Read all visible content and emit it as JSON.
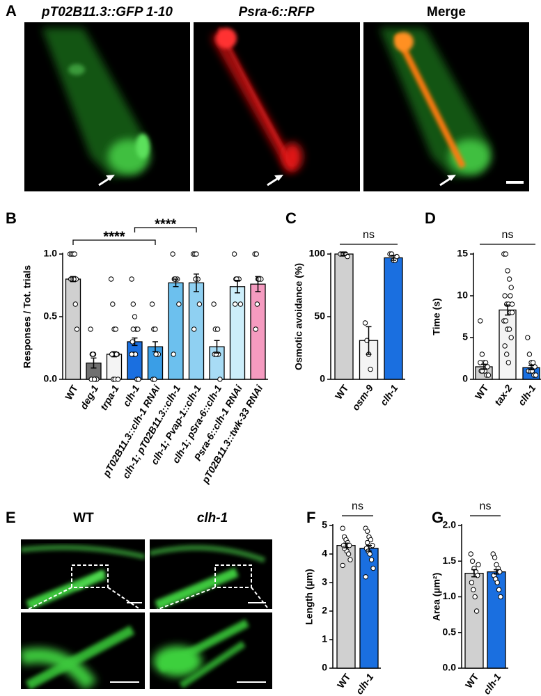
{
  "panel_labels": [
    "A",
    "B",
    "C",
    "D",
    "E",
    "F",
    "G"
  ],
  "panel_a": {
    "titles": [
      "pT02B11.3::GFP 1-10",
      "Psra-6::RFP",
      "Merge"
    ]
  },
  "panel_e": {
    "titles": [
      "WT",
      "clh-1"
    ]
  },
  "chart_data": [
    {
      "type": "bar",
      "ylabel": "Responses / Tot. trials",
      "categories": [
        "WT",
        "deg-1",
        "trpa-1",
        "clh-1",
        "pT02B11.3::clh-1 RNAi",
        "clh-1; pT02B11.3::clh-1",
        "clh-1; Pvap-1::clh-1",
        "clh-1; pSra-6::clh-1",
        "Psra-6::clh-1 RNAi",
        "pT02B11.3::twk-33 RNAi"
      ],
      "values": [
        0.8,
        0.13,
        0.2,
        0.3,
        0.26,
        0.77,
        0.77,
        0.26,
        0.74,
        0.76
      ],
      "errors": [
        0.02,
        0.04,
        0.02,
        0.03,
        0.04,
        0.03,
        0.07,
        0.05,
        0.05,
        0.06
      ],
      "colors": [
        "#d0d0d0",
        "#707070",
        "#f4f4f4",
        "#1a6fe0",
        "#3a9ee6",
        "#6cc0ee",
        "#8fd0f2",
        "#a8dcf5",
        "#cceefa",
        "#f59bc0"
      ],
      "points": [
        [
          1,
          1,
          1,
          1,
          0.8,
          0.8,
          0.8,
          0.8,
          0.6,
          0.4
        ],
        [
          0.4,
          0.2,
          0.2,
          0,
          0,
          0,
          0.2,
          0
        ],
        [
          0.8,
          0.6,
          0.4,
          0.4,
          0.2,
          0.2,
          0,
          0,
          0.2,
          0
        ],
        [
          0.8,
          0.6,
          0.5,
          0.4,
          0.4,
          0.3,
          0.2,
          0.2,
          0,
          0,
          0.2,
          0.4
        ],
        [
          0.6,
          0.4,
          0.4,
          0.2,
          0.2,
          0,
          0,
          0.2
        ],
        [
          1,
          0.8,
          0.8,
          0.8,
          0.6,
          0.2,
          0.8
        ],
        [
          1,
          1,
          1,
          0.8,
          0.6,
          0.4,
          0.8
        ],
        [
          0.6,
          0.4,
          0.2,
          0.2,
          0,
          0.2,
          0.2,
          0.4
        ],
        [
          1,
          0.8,
          0.8,
          0.8,
          0.6,
          0.6,
          0.8
        ],
        [
          1,
          1,
          0.8,
          0.8,
          0.8,
          0.4,
          0.6,
          0.8
        ]
      ],
      "ylim": [
        0,
        1.0
      ],
      "yticks": [
        {
          "value": 0,
          "label": "0.0"
        },
        0.5,
        {
          "value": 1,
          "label": "1.0"
        }
      ],
      "annotations": [
        "****",
        "****"
      ]
    },
    {
      "type": "bar",
      "ylabel": "Osmotic avoidance (%)",
      "categories": [
        "WT",
        "osm-9",
        "clh-1"
      ],
      "values": [
        100,
        31,
        97
      ],
      "errors": [
        1,
        11,
        2
      ],
      "colors": [
        "#d0d0d0",
        "#f4f4f4",
        "#1a6fe0"
      ],
      "points": [
        [
          100,
          100,
          100,
          100,
          98
        ],
        [
          45,
          31,
          20,
          8
        ],
        [
          100,
          100,
          95,
          95,
          98
        ]
      ],
      "ylim": [
        0,
        100
      ],
      "yticks": [
        0,
        50,
        100
      ],
      "annotations": [
        "ns"
      ]
    },
    {
      "type": "bar",
      "ylabel": "Time (s)",
      "categories": [
        "WT",
        "tax-2",
        "clh-1"
      ],
      "values": [
        1.5,
        8.3,
        1.4
      ],
      "errors": [
        0.3,
        0.6,
        0.25
      ],
      "colors": [
        "#d0d0d0",
        "#f4f4f4",
        "#1a6fe0"
      ],
      "points": [
        [
          7,
          3,
          2,
          2,
          1.5,
          1,
          1,
          1,
          0.5,
          0.5,
          2,
          1
        ],
        [
          15,
          15,
          13,
          12,
          11,
          10,
          9,
          9,
          8,
          8,
          7,
          7,
          6,
          6,
          5,
          4,
          3,
          2,
          10,
          9
        ],
        [
          5,
          3,
          2,
          2,
          1.5,
          1,
          1,
          1,
          0.5,
          0.5
        ]
      ],
      "ylim": [
        0,
        15
      ],
      "yticks": [
        0,
        5,
        10,
        15
      ],
      "annotations": [
        "ns"
      ]
    },
    {
      "type": "bar",
      "ylabel": "Length (µm)",
      "categories": [
        "WT",
        "clh-1"
      ],
      "values": [
        4.3,
        4.2
      ],
      "errors": [
        0.08,
        0.1
      ],
      "colors": [
        "#d0d0d0",
        "#1a6fe0"
      ],
      "points": [
        [
          4.9,
          4.6,
          4.5,
          4.4,
          4.3,
          4.3,
          4.2,
          4.1,
          4,
          3.8,
          3.6,
          4.2
        ],
        [
          4.9,
          4.8,
          4.6,
          4.5,
          4.3,
          4.2,
          4.1,
          4,
          3.8,
          3.5,
          3.2,
          4.4
        ]
      ],
      "ylim": [
        0,
        5
      ],
      "yticks": [
        0,
        1,
        2,
        3,
        4,
        5
      ],
      "annotations": [
        "ns"
      ]
    },
    {
      "type": "bar",
      "ylabel": "Area (µm²)",
      "categories": [
        "WT",
        "clh-1"
      ],
      "values": [
        1.33,
        1.35
      ],
      "errors": [
        0.05,
        0.03
      ],
      "colors": [
        "#d0d0d0",
        "#1a6fe0"
      ],
      "points": [
        [
          1.6,
          1.5,
          1.4,
          1.35,
          1.3,
          1.2,
          1.1,
          1.0,
          0.8,
          1.45
        ],
        [
          1.6,
          1.55,
          1.45,
          1.4,
          1.35,
          1.3,
          1.25,
          1.2,
          1.1,
          1.0
        ]
      ],
      "ylim": [
        0,
        2.0
      ],
      "yticks": [
        {
          "value": 0,
          "label": "0.0"
        },
        0.5,
        {
          "value": 1,
          "label": "1.0"
        },
        1.5,
        {
          "value": 2,
          "label": "2.0"
        }
      ],
      "annotations": [
        "ns"
      ]
    }
  ]
}
